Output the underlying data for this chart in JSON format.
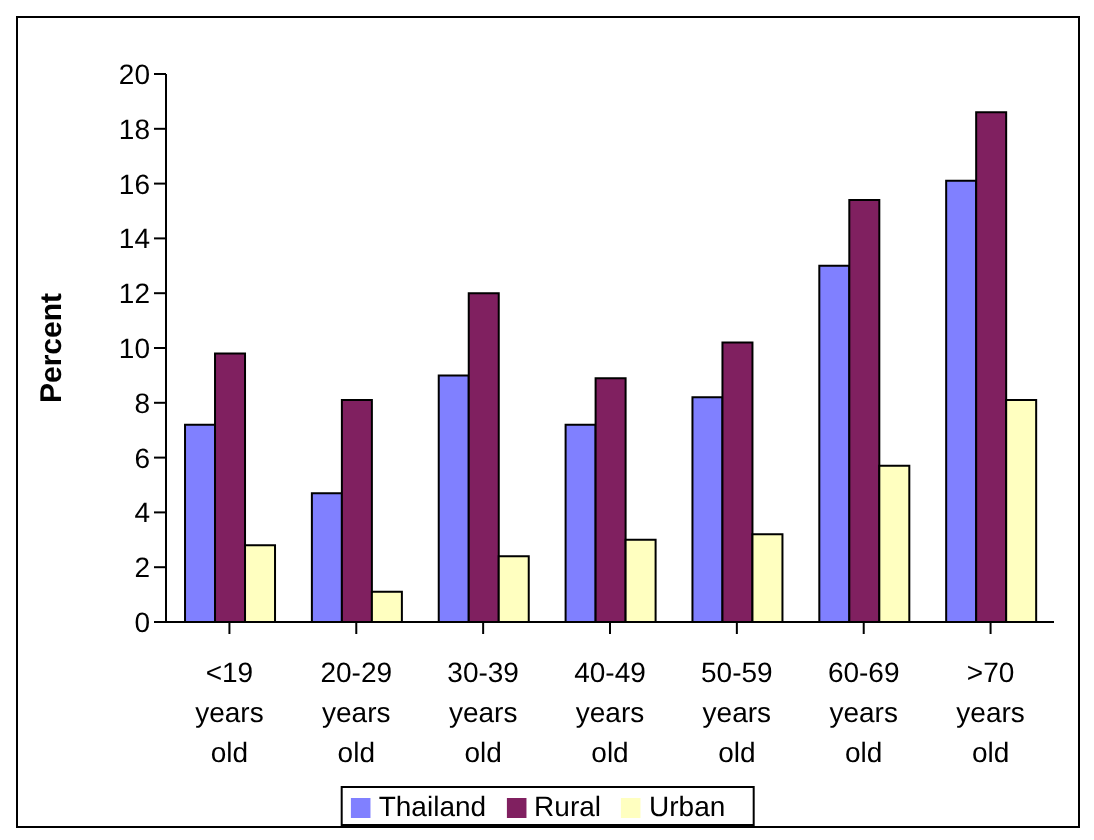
{
  "chart_data": {
    "type": "bar",
    "ylabel": "Percent",
    "categories": [
      "<19 years old",
      "20-29 years old",
      "30-39 years old",
      "40-49 years old",
      "50-59 years old",
      "60-69 years old",
      ">70 years old"
    ],
    "series": [
      {
        "name": "Thailand",
        "color": "#8080ff",
        "values": [
          7.2,
          4.7,
          9.0,
          7.2,
          8.2,
          13.0,
          16.1
        ]
      },
      {
        "name": "Rural",
        "color": "#802060",
        "values": [
          9.8,
          8.1,
          12.0,
          8.9,
          10.2,
          15.4,
          18.6
        ]
      },
      {
        "name": "Urban",
        "color": "#ffffc0",
        "values": [
          2.8,
          1.1,
          2.4,
          3.0,
          3.2,
          5.7,
          8.1
        ]
      }
    ],
    "ylim": [
      0,
      20
    ],
    "yticks": [
      0,
      2,
      4,
      6,
      8,
      10,
      12,
      14,
      16,
      18,
      20
    ],
    "grid": false,
    "legend": "bottom"
  }
}
